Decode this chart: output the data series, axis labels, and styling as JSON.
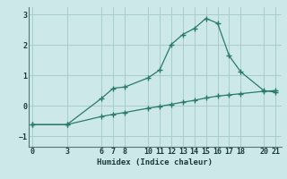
{
  "xlabel": "Humidex (Indice chaleur)",
  "bg_color": "#cce8e8",
  "grid_color": "#a8cccc",
  "line_color": "#2a7a6a",
  "line1_x": [
    0,
    3,
    6,
    7,
    8,
    10,
    11,
    12,
    13,
    14,
    15,
    16,
    17,
    18,
    20,
    21
  ],
  "line1_y": [
    -0.62,
    -0.62,
    0.25,
    0.58,
    0.62,
    0.92,
    1.18,
    2.02,
    2.35,
    2.55,
    2.88,
    2.72,
    1.65,
    1.12,
    0.5,
    0.45
  ],
  "line2_x": [
    0,
    3,
    6,
    7,
    8,
    10,
    11,
    12,
    13,
    14,
    15,
    16,
    17,
    18,
    20,
    21
  ],
  "line2_y": [
    -0.62,
    -0.62,
    -0.35,
    -0.28,
    -0.22,
    -0.08,
    -0.02,
    0.05,
    0.12,
    0.18,
    0.26,
    0.32,
    0.36,
    0.4,
    0.48,
    0.5
  ],
  "xticks": [
    0,
    3,
    6,
    7,
    8,
    10,
    11,
    12,
    13,
    14,
    15,
    16,
    17,
    18,
    20,
    21
  ],
  "yticks": [
    -1,
    0,
    1,
    2,
    3
  ],
  "xlim": [
    -0.3,
    21.5
  ],
  "ylim": [
    -1.35,
    3.25
  ]
}
